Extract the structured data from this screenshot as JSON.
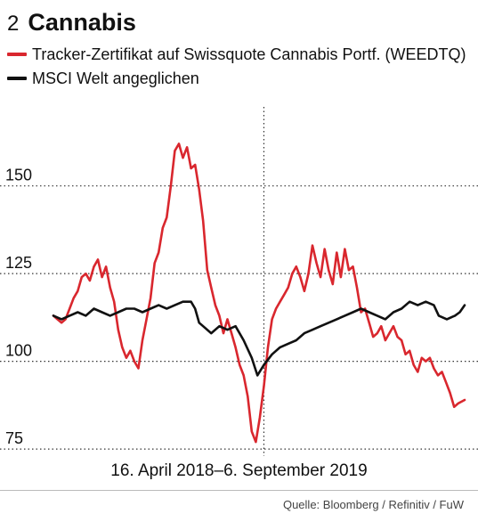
{
  "header": {
    "number": "2",
    "title": "Cannabis"
  },
  "legend": [
    {
      "label": "Tracker-Zertifikat auf Swissquote Cannabis Portf. (WEEDTQ)",
      "color": "#d9272e"
    },
    {
      "label": "MSCI Welt angeglichen",
      "color": "#111111"
    }
  ],
  "chart_data": {
    "type": "line",
    "x_range": [
      "2018-04-16",
      "2019-09-06"
    ],
    "yticks": [
      75,
      100,
      125,
      150
    ],
    "ylim": [
      73,
      172
    ],
    "grid": "dotted",
    "series": [
      {
        "name": "Tracker-Zertifikat auf Swissquote Cannabis Portf. (WEEDTQ)",
        "color": "#d9272e",
        "points": [
          [
            "2018-04-16",
            113
          ],
          [
            "2018-04-21",
            112
          ],
          [
            "2018-04-26",
            111
          ],
          [
            "2018-05-01",
            112
          ],
          [
            "2018-05-06",
            115
          ],
          [
            "2018-05-11",
            118
          ],
          [
            "2018-05-16",
            120
          ],
          [
            "2018-05-21",
            124
          ],
          [
            "2018-05-26",
            125
          ],
          [
            "2018-05-31",
            123
          ],
          [
            "2018-06-05",
            127
          ],
          [
            "2018-06-10",
            129
          ],
          [
            "2018-06-15",
            124
          ],
          [
            "2018-06-20",
            127
          ],
          [
            "2018-06-25",
            121
          ],
          [
            "2018-06-30",
            117
          ],
          [
            "2018-07-05",
            109
          ],
          [
            "2018-07-10",
            104
          ],
          [
            "2018-07-15",
            101
          ],
          [
            "2018-07-20",
            103
          ],
          [
            "2018-07-25",
            100
          ],
          [
            "2018-07-30",
            98
          ],
          [
            "2018-08-04",
            106
          ],
          [
            "2018-08-09",
            112
          ],
          [
            "2018-08-14",
            118
          ],
          [
            "2018-08-19",
            128
          ],
          [
            "2018-08-24",
            131
          ],
          [
            "2018-08-29",
            138
          ],
          [
            "2018-09-03",
            141
          ],
          [
            "2018-09-08",
            150
          ],
          [
            "2018-09-13",
            160
          ],
          [
            "2018-09-18",
            162
          ],
          [
            "2018-09-23",
            158
          ],
          [
            "2018-09-28",
            161
          ],
          [
            "2018-10-03",
            155
          ],
          [
            "2018-10-08",
            156
          ],
          [
            "2018-10-13",
            149
          ],
          [
            "2018-10-18",
            140
          ],
          [
            "2018-10-23",
            126
          ],
          [
            "2018-10-28",
            121
          ],
          [
            "2018-11-02",
            116
          ],
          [
            "2018-11-07",
            113
          ],
          [
            "2018-11-12",
            108
          ],
          [
            "2018-11-17",
            112
          ],
          [
            "2018-11-22",
            108
          ],
          [
            "2018-11-27",
            104
          ],
          [
            "2018-12-02",
            99
          ],
          [
            "2018-12-07",
            96
          ],
          [
            "2018-12-12",
            90
          ],
          [
            "2018-12-17",
            80
          ],
          [
            "2018-12-22",
            77
          ],
          [
            "2018-12-27",
            84
          ],
          [
            "2019-01-01",
            93
          ],
          [
            "2019-01-06",
            104
          ],
          [
            "2019-01-11",
            112
          ],
          [
            "2019-01-16",
            115
          ],
          [
            "2019-01-21",
            117
          ],
          [
            "2019-01-26",
            119
          ],
          [
            "2019-01-31",
            121
          ],
          [
            "2019-02-05",
            125
          ],
          [
            "2019-02-10",
            127
          ],
          [
            "2019-02-15",
            124
          ],
          [
            "2019-02-20",
            120
          ],
          [
            "2019-02-25",
            125
          ],
          [
            "2019-03-02",
            133
          ],
          [
            "2019-03-07",
            128
          ],
          [
            "2019-03-12",
            124
          ],
          [
            "2019-03-17",
            132
          ],
          [
            "2019-03-22",
            126
          ],
          [
            "2019-03-27",
            122
          ],
          [
            "2019-04-01",
            131
          ],
          [
            "2019-04-06",
            124
          ],
          [
            "2019-04-11",
            132
          ],
          [
            "2019-04-16",
            126
          ],
          [
            "2019-04-21",
            127
          ],
          [
            "2019-04-26",
            121
          ],
          [
            "2019-05-01",
            114
          ],
          [
            "2019-05-06",
            115
          ],
          [
            "2019-05-11",
            111
          ],
          [
            "2019-05-16",
            107
          ],
          [
            "2019-05-21",
            108
          ],
          [
            "2019-05-26",
            110
          ],
          [
            "2019-05-31",
            106
          ],
          [
            "2019-06-05",
            108
          ],
          [
            "2019-06-10",
            110
          ],
          [
            "2019-06-15",
            107
          ],
          [
            "2019-06-20",
            106
          ],
          [
            "2019-06-25",
            102
          ],
          [
            "2019-06-30",
            103
          ],
          [
            "2019-07-05",
            99
          ],
          [
            "2019-07-10",
            97
          ],
          [
            "2019-07-15",
            101
          ],
          [
            "2019-07-20",
            100
          ],
          [
            "2019-07-25",
            101
          ],
          [
            "2019-07-30",
            98
          ],
          [
            "2019-08-04",
            96
          ],
          [
            "2019-08-09",
            97
          ],
          [
            "2019-08-14",
            94
          ],
          [
            "2019-08-19",
            91
          ],
          [
            "2019-08-24",
            87
          ],
          [
            "2019-08-29",
            88
          ],
          [
            "2019-09-06",
            89
          ]
        ]
      },
      {
        "name": "MSCI Welt angeglichen",
        "color": "#111111",
        "points": [
          [
            "2018-04-16",
            113
          ],
          [
            "2018-04-26",
            112
          ],
          [
            "2018-05-06",
            113
          ],
          [
            "2018-05-16",
            114
          ],
          [
            "2018-05-26",
            113
          ],
          [
            "2018-06-05",
            115
          ],
          [
            "2018-06-15",
            114
          ],
          [
            "2018-06-25",
            113
          ],
          [
            "2018-07-05",
            114
          ],
          [
            "2018-07-15",
            115
          ],
          [
            "2018-07-25",
            115
          ],
          [
            "2018-08-04",
            114
          ],
          [
            "2018-08-14",
            115
          ],
          [
            "2018-08-24",
            116
          ],
          [
            "2018-09-03",
            115
          ],
          [
            "2018-09-13",
            116
          ],
          [
            "2018-09-23",
            117
          ],
          [
            "2018-10-03",
            117
          ],
          [
            "2018-10-08",
            115
          ],
          [
            "2018-10-13",
            111
          ],
          [
            "2018-10-18",
            110
          ],
          [
            "2018-10-28",
            108
          ],
          [
            "2018-11-07",
            110
          ],
          [
            "2018-11-17",
            109
          ],
          [
            "2018-11-27",
            110
          ],
          [
            "2018-12-07",
            106
          ],
          [
            "2018-12-17",
            101
          ],
          [
            "2018-12-24",
            96
          ],
          [
            "2019-01-01",
            99
          ],
          [
            "2019-01-11",
            102
          ],
          [
            "2019-01-21",
            104
          ],
          [
            "2019-01-31",
            105
          ],
          [
            "2019-02-10",
            106
          ],
          [
            "2019-02-20",
            108
          ],
          [
            "2019-03-02",
            109
          ],
          [
            "2019-03-12",
            110
          ],
          [
            "2019-03-22",
            111
          ],
          [
            "2019-04-01",
            112
          ],
          [
            "2019-04-11",
            113
          ],
          [
            "2019-04-21",
            114
          ],
          [
            "2019-05-01",
            115
          ],
          [
            "2019-05-11",
            114
          ],
          [
            "2019-05-21",
            113
          ],
          [
            "2019-05-31",
            112
          ],
          [
            "2019-06-10",
            114
          ],
          [
            "2019-06-20",
            115
          ],
          [
            "2019-06-30",
            117
          ],
          [
            "2019-07-10",
            116
          ],
          [
            "2019-07-20",
            117
          ],
          [
            "2019-07-30",
            116
          ],
          [
            "2019-08-05",
            113
          ],
          [
            "2019-08-15",
            112
          ],
          [
            "2019-08-25",
            113
          ],
          [
            "2019-08-31",
            114
          ],
          [
            "2019-09-06",
            116
          ]
        ]
      }
    ]
  },
  "footer": {
    "period": "16. April 2018–6. September 2019",
    "source": "Quelle: Bloomberg / Refinitiv / FuW"
  }
}
